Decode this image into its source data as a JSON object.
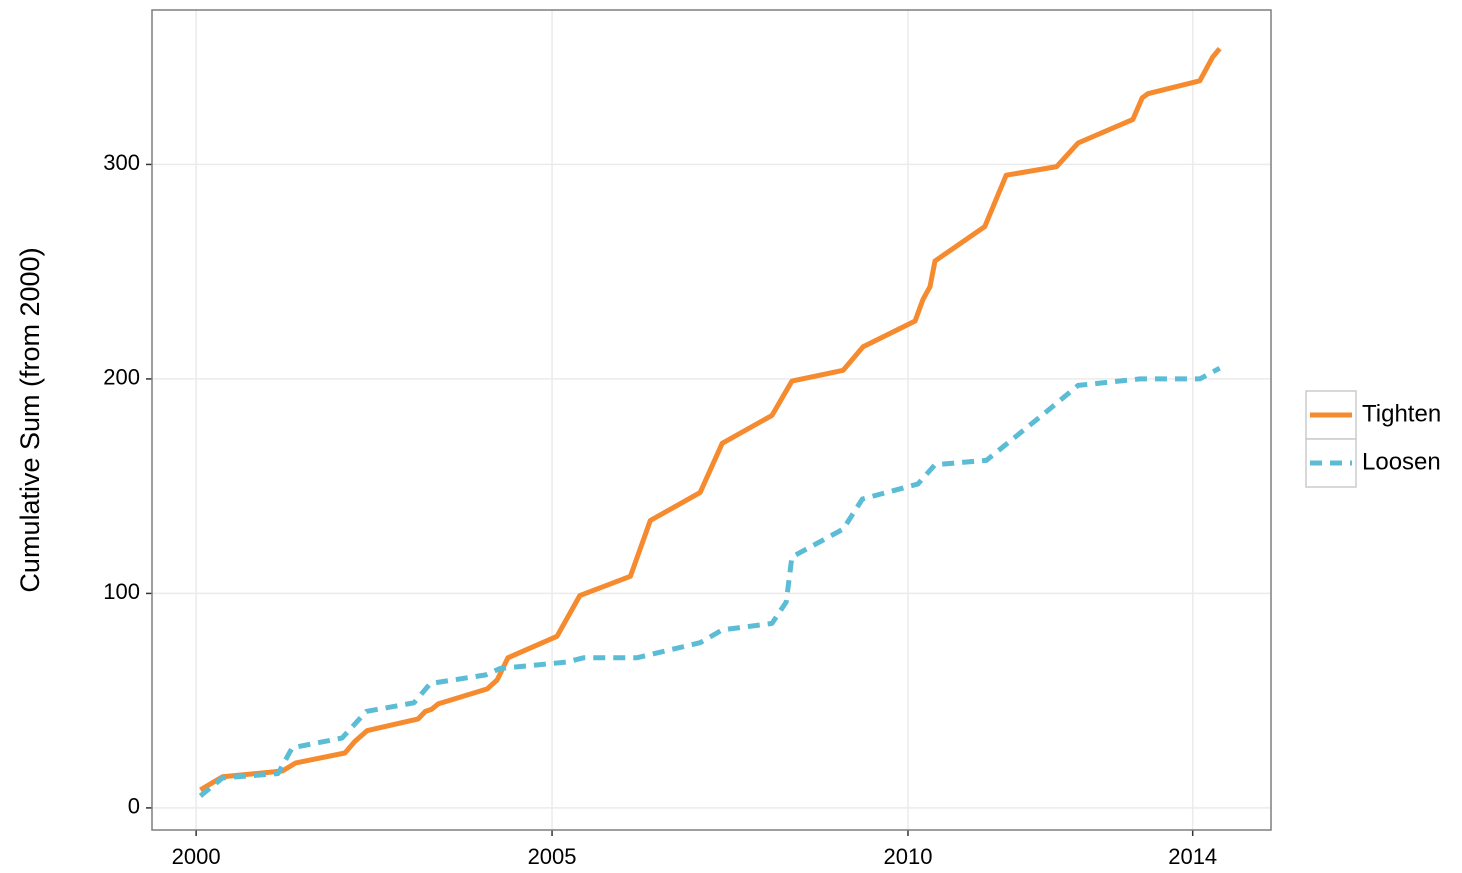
{
  "chart_data": {
    "type": "line",
    "y_label": "Cumulative Sum (from 2000)",
    "xlim": [
      1999.38,
      2015.1
    ],
    "ylim": [
      -10.3,
      372
    ],
    "xticks": [
      2000,
      2005,
      2010,
      2014
    ],
    "yticks": [
      0,
      100,
      200,
      300
    ],
    "grid": true,
    "legend": "right",
    "series": [
      {
        "name": "Tighten",
        "color": "#f58a2e",
        "dash": "solid",
        "x": [
          2000.06,
          2000.37,
          2001.21,
          2001.4,
          2002.09,
          2002.23,
          2002.4,
          2003.12,
          2003.22,
          2003.31,
          2003.4,
          2004.09,
          2004.23,
          2004.38,
          2005.07,
          2005.39,
          2006.1,
          2006.38,
          2007.08,
          2007.39,
          2008.09,
          2008.37,
          2009.09,
          2009.37,
          2010.1,
          2010.21,
          2010.31,
          2010.38,
          2011.08,
          2011.38,
          2012.09,
          2012.39,
          2013.16,
          2013.29,
          2013.37,
          2014.1,
          2014.28,
          2014.38
        ],
        "values": [
          8.4,
          14.5,
          17.2,
          21,
          25.6,
          31,
          36,
          41.5,
          45,
          46,
          48.5,
          55.5,
          59.7,
          70,
          80,
          99,
          108,
          134,
          147,
          170,
          183,
          199,
          204,
          215,
          227,
          237,
          243,
          255,
          271,
          295,
          299,
          310,
          321,
          331,
          333,
          339,
          350,
          354
        ]
      },
      {
        "name": "Loosen",
        "color": "#5bbcd6",
        "dash": "dashed",
        "x": [
          2000.06,
          2000.37,
          2001.15,
          2001.35,
          2002.05,
          2002.39,
          2003.06,
          2003.29,
          2004.07,
          2004.27,
          2005.2,
          2005.44,
          2006.19,
          2007.08,
          2007.39,
          2008.09,
          2008.29,
          2008.37,
          2009.09,
          2009.36,
          2010.14,
          2010.38,
          2011.1,
          2011.92,
          2012.39,
          2013.26,
          2014.1,
          2014.38
        ],
        "values": [
          5.6,
          14,
          16,
          28,
          32.6,
          45,
          49,
          58,
          62,
          65,
          68,
          70,
          70,
          77,
          83,
          86,
          96,
          117,
          130,
          144,
          151,
          160,
          162,
          184,
          197,
          200,
          200,
          205
        ]
      }
    ]
  }
}
